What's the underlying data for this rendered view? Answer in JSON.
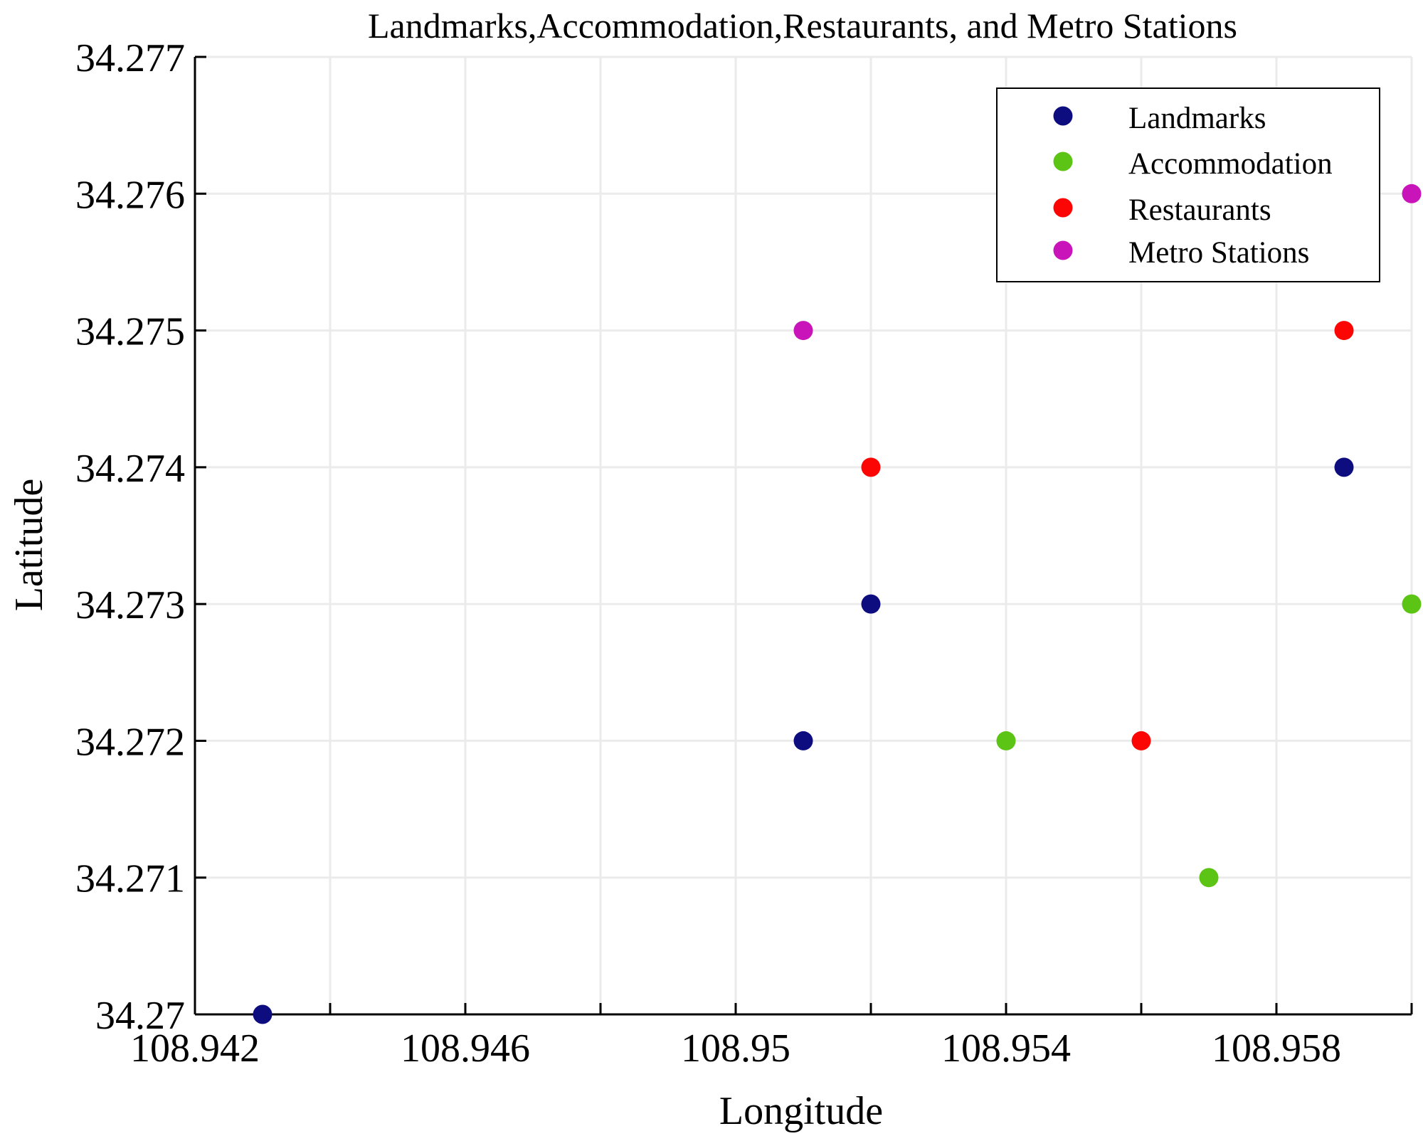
{
  "chart_data": {
    "type": "scatter",
    "title": "Landmarks,Accommodation,Restaurants, and Metro Stations",
    "xlabel": "Longitude",
    "ylabel": "Latitude",
    "xlim": [
      108.942,
      108.96
    ],
    "ylim": [
      34.27,
      34.277
    ],
    "x_ticks": [
      108.942,
      108.944,
      108.946,
      108.948,
      108.95,
      108.952,
      108.954,
      108.956,
      108.958,
      108.96
    ],
    "x_tick_labels": [
      "108.942",
      "",
      "108.946",
      "",
      "108.95",
      "",
      "108.954",
      "",
      "108.958",
      ""
    ],
    "y_ticks": [
      34.27,
      34.271,
      34.272,
      34.273,
      34.274,
      34.275,
      34.276,
      34.277
    ],
    "y_tick_labels": [
      "34.27",
      "34.271",
      "34.272",
      "34.273",
      "34.274",
      "34.275",
      "34.276",
      "34.277"
    ],
    "grid": true,
    "legend_position": "top-right",
    "series": [
      {
        "name": "Landmarks",
        "color": "#0d0d7f",
        "points": [
          [
            108.943,
            34.27
          ],
          [
            108.951,
            34.272
          ],
          [
            108.952,
            34.273
          ],
          [
            108.959,
            34.274
          ]
        ]
      },
      {
        "name": "Accommodation",
        "color": "#5cc414",
        "points": [
          [
            108.954,
            34.272
          ],
          [
            108.957,
            34.271
          ],
          [
            108.96,
            34.273
          ]
        ]
      },
      {
        "name": "Restaurants",
        "color": "#fb0505",
        "points": [
          [
            108.952,
            34.274
          ],
          [
            108.956,
            34.272
          ],
          [
            108.959,
            34.275
          ]
        ]
      },
      {
        "name": "Metro Stations",
        "color": "#c814b9",
        "points": [
          [
            108.951,
            34.275
          ],
          [
            108.96,
            34.276
          ]
        ]
      }
    ]
  }
}
